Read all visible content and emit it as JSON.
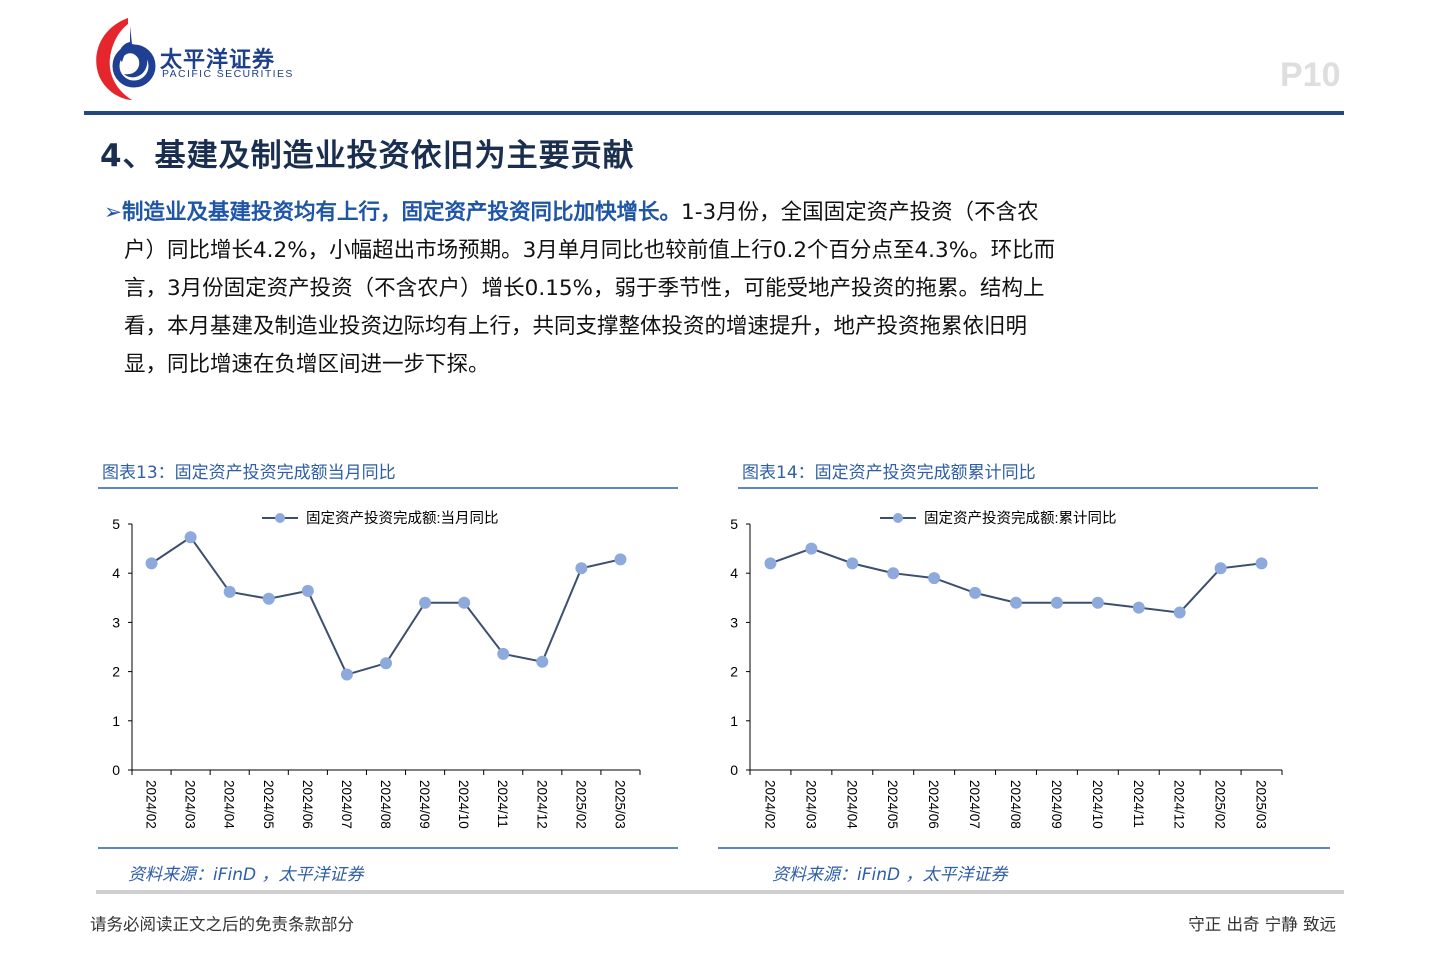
{
  "header": {
    "logo_cn": "太平洋证券",
    "logo_en": "PACIFIC SECURITIES",
    "page_number": "P10",
    "brand_color": "#22487f"
  },
  "section": {
    "title": "4、基建及制造业投资依旧为主要贡献",
    "bullet_icon": "arrow-bullet-icon",
    "lead": "➢制造业及基建投资均有上行，固定资产投资同比加快增长。",
    "lines": [
      "1-3月份，全国固定资产投资（不含农",
      "户）同比增长4.2%，小幅超出市场预期。3月单月同比也较前值上行0.2个百分点至4.3%。环比而",
      "言，3月份固定资产投资（不含农户）增长0.15%，弱于季节性，可能受地产投资的拖累。结构上",
      "看，本月基建及制造业投资边际均有上行，共同支撑整体投资的增速提升，地产投资拖累依旧明",
      "显，同比增速在负增区间进一步下探。"
    ]
  },
  "charts": [
    {
      "caption": "图表13：固定资产投资完成额当月同比",
      "source": "资料来源：iFinD ，太平洋证券"
    },
    {
      "caption": "图表14：固定资产投资完成额累计同比",
      "source": "资料来源：iFinD ，太平洋证券"
    }
  ],
  "chart_data": [
    {
      "type": "line",
      "title": "图表13：固定资产投资完成额当月同比",
      "categories": [
        "2024/02",
        "2024/03",
        "2024/04",
        "2024/05",
        "2024/06",
        "2024/07",
        "2024/08",
        "2024/09",
        "2024/10",
        "2024/11",
        "2024/12",
        "2025/02",
        "2025/03"
      ],
      "series": [
        {
          "name": "固定资产投资完成额:当月同比",
          "values": [
            4.2,
            4.73,
            3.62,
            3.48,
            3.64,
            1.94,
            2.17,
            3.4,
            3.4,
            2.36,
            2.2,
            4.1,
            4.28
          ]
        }
      ],
      "xlabel": "",
      "ylabel": "",
      "ylim": [
        0,
        5
      ],
      "yticks": [
        0,
        1,
        2,
        3,
        4,
        5
      ],
      "grid": false,
      "legend_position": "top",
      "line_color": "#3d4f6e",
      "marker_color": "#8ea9db"
    },
    {
      "type": "line",
      "title": "图表14：固定资产投资完成额累计同比",
      "categories": [
        "2024/02",
        "2024/03",
        "2024/04",
        "2024/05",
        "2024/06",
        "2024/07",
        "2024/08",
        "2024/09",
        "2024/10",
        "2024/11",
        "2024/12",
        "2025/02",
        "2025/03"
      ],
      "series": [
        {
          "name": "固定资产投资完成额:累计同比",
          "values": [
            4.2,
            4.5,
            4.2,
            4.0,
            3.9,
            3.6,
            3.4,
            3.4,
            3.4,
            3.3,
            3.2,
            4.1,
            4.2
          ]
        }
      ],
      "xlabel": "",
      "ylabel": "",
      "ylim": [
        0,
        5
      ],
      "yticks": [
        0,
        1,
        2,
        3,
        4,
        5
      ],
      "grid": false,
      "legend_position": "top",
      "line_color": "#3d4f6e",
      "marker_color": "#8ea9db"
    }
  ],
  "footer": {
    "disclaimer": "请务必阅读正文之后的免责条款部分",
    "motto": "守正 出奇 宁静 致远"
  }
}
